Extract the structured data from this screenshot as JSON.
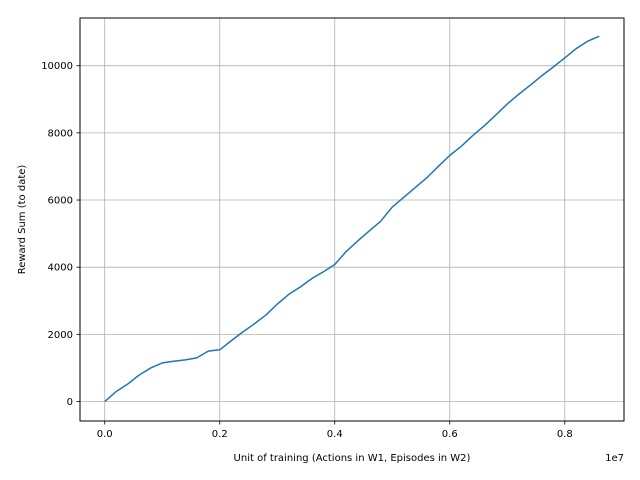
{
  "chart_data": {
    "type": "line",
    "title": "",
    "xlabel": "Unit of training (Actions in W1, Episodes in W2)",
    "ylabel": "Reward Sum (to date)",
    "x_offset_label": "1e7",
    "xlim": [
      -0.043,
      0.903
    ],
    "ylim": [
      -580,
      11420
    ],
    "x_ticks": [
      0.0,
      0.2,
      0.4,
      0.6,
      0.8
    ],
    "x_tick_labels": [
      "0.0",
      "0.2",
      "0.4",
      "0.6",
      "0.8"
    ],
    "y_ticks": [
      0,
      2000,
      4000,
      6000,
      8000,
      10000
    ],
    "y_tick_labels": [
      "0",
      "2000",
      "4000",
      "6000",
      "8000",
      "10000"
    ],
    "grid": true,
    "series": [
      {
        "color": "#1f77b4",
        "x": [
          0.0,
          0.02,
          0.04,
          0.06,
          0.08,
          0.1,
          0.12,
          0.14,
          0.16,
          0.18,
          0.2,
          0.22,
          0.24,
          0.26,
          0.28,
          0.3,
          0.32,
          0.34,
          0.36,
          0.38,
          0.4,
          0.42,
          0.44,
          0.46,
          0.48,
          0.5,
          0.52,
          0.54,
          0.56,
          0.58,
          0.6,
          0.62,
          0.64,
          0.66,
          0.68,
          0.7,
          0.72,
          0.74,
          0.76,
          0.78,
          0.8,
          0.82,
          0.84,
          0.86
        ],
        "y": [
          0,
          300,
          520,
          790,
          1000,
          1150,
          1200,
          1240,
          1300,
          1500,
          1540,
          1810,
          2070,
          2310,
          2570,
          2900,
          3190,
          3410,
          3660,
          3860,
          4080,
          4470,
          4780,
          5080,
          5370,
          5790,
          6080,
          6370,
          6660,
          7000,
          7330,
          7600,
          7920,
          8210,
          8530,
          8860,
          9150,
          9420,
          9700,
          9960,
          10230,
          10510,
          10730,
          10880
        ]
      }
    ]
  }
}
